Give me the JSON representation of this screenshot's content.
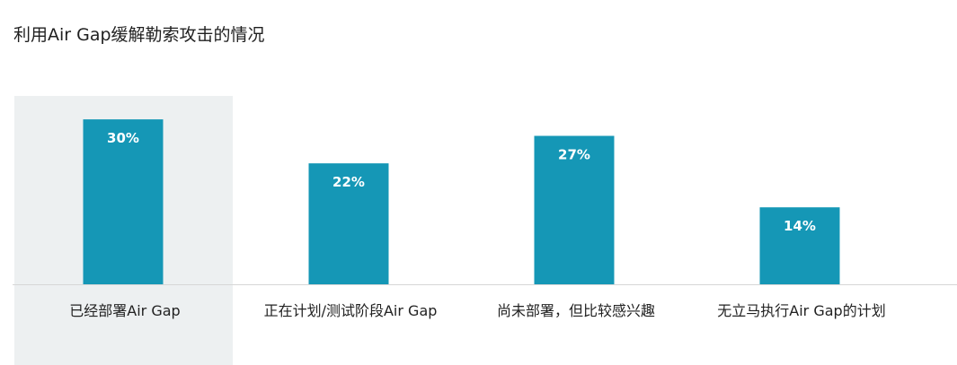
{
  "chart_data": {
    "type": "bar",
    "title": "利用Air Gap缓解勒索攻击的情况",
    "categories": [
      "已经部署Air Gap",
      "正在计划/测试阶段Air Gap",
      "尚未部署，但比较感兴趣",
      "无立马执行Air Gap的计划"
    ],
    "values": [
      30,
      22,
      27,
      14
    ],
    "value_labels": [
      "30%",
      "22%",
      "27%",
      "14%"
    ],
    "unit": "%",
    "highlight_index": 0,
    "grid": false,
    "legend": "none",
    "colors": {
      "bar": "#1597b6",
      "highlight_band": "#edf0f1",
      "axis": "#d6d6d6"
    }
  }
}
